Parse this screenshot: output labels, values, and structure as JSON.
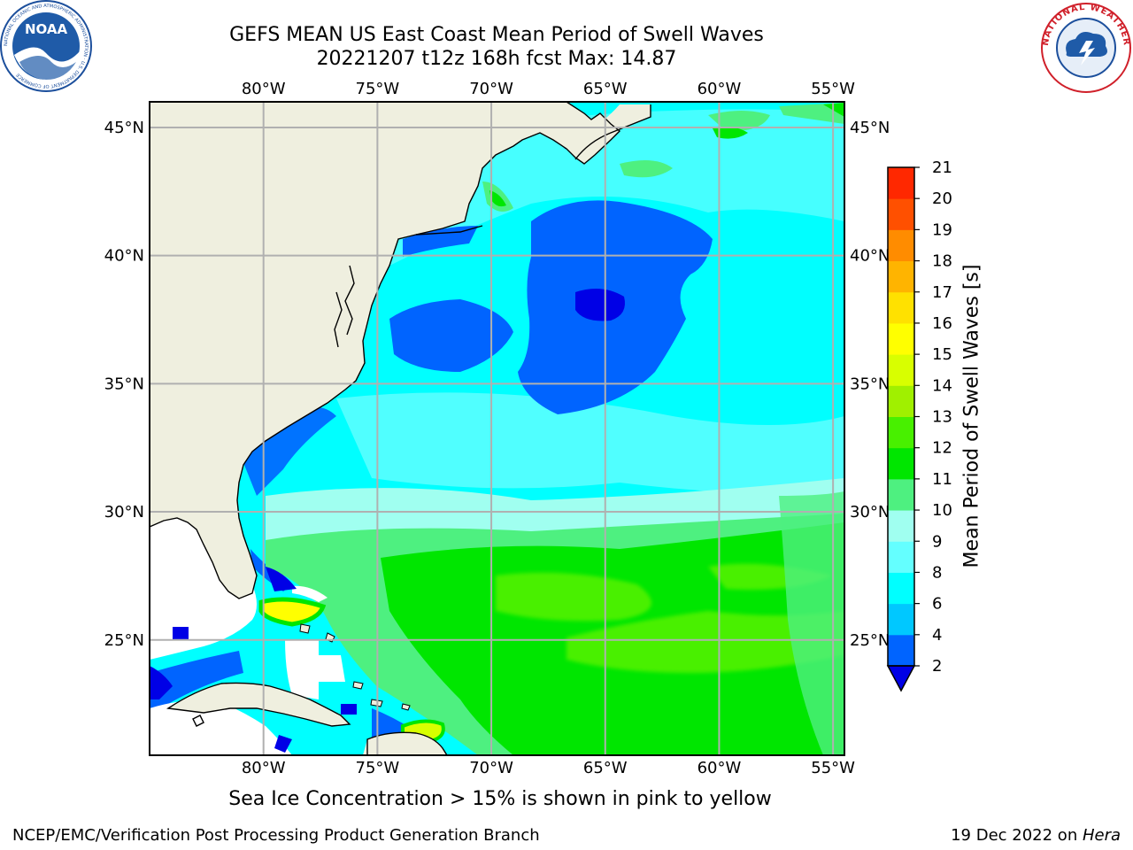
{
  "title": {
    "line1": "GEFS MEAN US East Coast Mean Period of Swell Waves",
    "line2": "20221207 t12z 168h fcst   Max: 14.87"
  },
  "map": {
    "lon_labels": [
      "80°W",
      "75°W",
      "70°W",
      "65°W",
      "60°W",
      "55°W"
    ],
    "lat_labels": [
      "45°N",
      "40°N",
      "35°N",
      "30°N",
      "25°N"
    ],
    "extent": {
      "lon_min": -85,
      "lon_max": -54.5,
      "lat_min": 20.5,
      "lat_max": 46
    },
    "land_color": "#efefdf",
    "grid_color": "#b0b0b0",
    "max_value": 14.87
  },
  "colorbar": {
    "label": "Mean Period of Swell Waves [s]",
    "tick_labels": [
      "2",
      "4",
      "6",
      "8",
      "9",
      "10",
      "11",
      "12",
      "13",
      "14",
      "15",
      "16",
      "17",
      "18",
      "19",
      "20",
      "21"
    ],
    "under_color": "#0000e6",
    "colors": [
      "#0064ff",
      "#00c8ff",
      "#00ffff",
      "#64ffff",
      "#a0fff0",
      "#4ef080",
      "#00e600",
      "#48f000",
      "#a0f000",
      "#d8ff00",
      "#ffff00",
      "#ffe100",
      "#ffb400",
      "#ff8c00",
      "#ff5000",
      "#ff2800"
    ]
  },
  "footer": {
    "ice_note": "Sea Ice Concentration > 15% is shown in pink to yellow",
    "credit": "NCEP/EMC/Verification Post Processing Product Generation Branch",
    "date_prefix": "19 Dec 2022 on ",
    "machine": "Hera"
  },
  "logos": {
    "left": {
      "text": "NOAA",
      "ring_text": "NATIONAL OCEANIC AND ATMOSPHERIC ADMINISTRATION · U.S. DEPARTMENT OF COMMERCE"
    },
    "right": {
      "ring_text": "NATIONAL WEATHER SERVICE"
    }
  }
}
